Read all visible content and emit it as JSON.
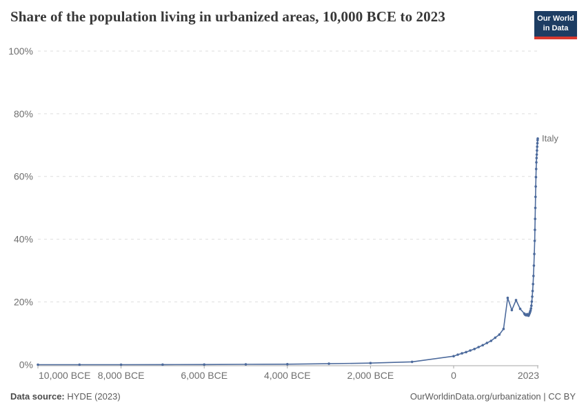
{
  "header": {
    "title": "Share of the population living in urbanized areas, 10,000 BCE to 2023",
    "logo": {
      "line1": "Our World",
      "line2": "in Data"
    }
  },
  "footer": {
    "source_label": "Data source:",
    "source_value": "HYDE (2023)",
    "credit": "OurWorldinData.org/urbanization | CC BY"
  },
  "colors": {
    "line": "#4c6a9c",
    "grid": "#dedede",
    "axis": "#a5a5a5",
    "tick_text": "#6e6e6e",
    "title_text": "#383838",
    "logo_bg": "#1d3d63",
    "logo_accent": "#d8392f"
  },
  "chart_data": {
    "type": "line",
    "title": "Share of the population living in urbanized areas, 10,000 BCE to 2023",
    "unit": "%",
    "grid": "dashed-horizontal",
    "legend_position": "end-of-line-label",
    "x_axis": {
      "min": -10000,
      "max": 2023,
      "ticks": [
        {
          "value": -10000,
          "label": "10,000 BCE"
        },
        {
          "value": -8000,
          "label": "8,000 BCE"
        },
        {
          "value": -6000,
          "label": "6,000 BCE"
        },
        {
          "value": -4000,
          "label": "4,000 BCE"
        },
        {
          "value": -2000,
          "label": "2,000 BCE"
        },
        {
          "value": 0,
          "label": "0"
        },
        {
          "value": 2023,
          "label": "2023"
        }
      ]
    },
    "y_axis": {
      "min": 0,
      "max": 100,
      "ticks": [
        {
          "value": 0,
          "label": "0%"
        },
        {
          "value": 20,
          "label": "20%"
        },
        {
          "value": 40,
          "label": "40%"
        },
        {
          "value": 60,
          "label": "60%"
        },
        {
          "value": 80,
          "label": "80%"
        },
        {
          "value": 100,
          "label": "100%"
        }
      ]
    },
    "series": [
      {
        "name": "Italy",
        "color": "#4c6a9c",
        "points": [
          [
            -10000,
            0
          ],
          [
            -9000,
            0
          ],
          [
            -8000,
            0
          ],
          [
            -7000,
            0.02
          ],
          [
            -6000,
            0.05
          ],
          [
            -5000,
            0.1
          ],
          [
            -4000,
            0.15
          ],
          [
            -3000,
            0.3
          ],
          [
            -2000,
            0.5
          ],
          [
            -1000,
            0.9
          ],
          [
            0,
            2.7
          ],
          [
            100,
            3.2
          ],
          [
            200,
            3.6
          ],
          [
            300,
            4.0
          ],
          [
            400,
            4.5
          ],
          [
            500,
            5.0
          ],
          [
            600,
            5.6
          ],
          [
            700,
            6.2
          ],
          [
            800,
            6.9
          ],
          [
            900,
            7.6
          ],
          [
            1000,
            8.6
          ],
          [
            1100,
            9.6
          ],
          [
            1200,
            11.4
          ],
          [
            1300,
            21.3
          ],
          [
            1400,
            17.4
          ],
          [
            1500,
            20.6
          ],
          [
            1600,
            17.8
          ],
          [
            1700,
            16.3
          ],
          [
            1710,
            16.1
          ],
          [
            1720,
            15.95
          ],
          [
            1730,
            15.85
          ],
          [
            1740,
            15.8
          ],
          [
            1750,
            15.75
          ],
          [
            1760,
            15.9
          ],
          [
            1770,
            16.1
          ],
          [
            1780,
            15.9
          ],
          [
            1790,
            15.7
          ],
          [
            1800,
            15.6
          ],
          [
            1810,
            15.9
          ],
          [
            1820,
            16.2
          ],
          [
            1830,
            16.5
          ],
          [
            1840,
            16.9
          ],
          [
            1850,
            17.3
          ],
          [
            1860,
            17.9
          ],
          [
            1870,
            18.8
          ],
          [
            1880,
            20.1
          ],
          [
            1890,
            21.7
          ],
          [
            1900,
            23.5
          ],
          [
            1910,
            25.7
          ],
          [
            1920,
            28.3
          ],
          [
            1930,
            31.6
          ],
          [
            1940,
            35.3
          ],
          [
            1950,
            39.5
          ],
          [
            1955,
            43.0
          ],
          [
            1960,
            46.5
          ],
          [
            1965,
            50.0
          ],
          [
            1970,
            53.5
          ],
          [
            1975,
            56.8
          ],
          [
            1980,
            59.8
          ],
          [
            1985,
            62.4
          ],
          [
            1990,
            64.5
          ],
          [
            1995,
            65.9
          ],
          [
            2000,
            67.0
          ],
          [
            2005,
            68.3
          ],
          [
            2010,
            69.5
          ],
          [
            2015,
            70.6
          ],
          [
            2020,
            71.6
          ],
          [
            2023,
            72.1
          ]
        ]
      }
    ]
  }
}
